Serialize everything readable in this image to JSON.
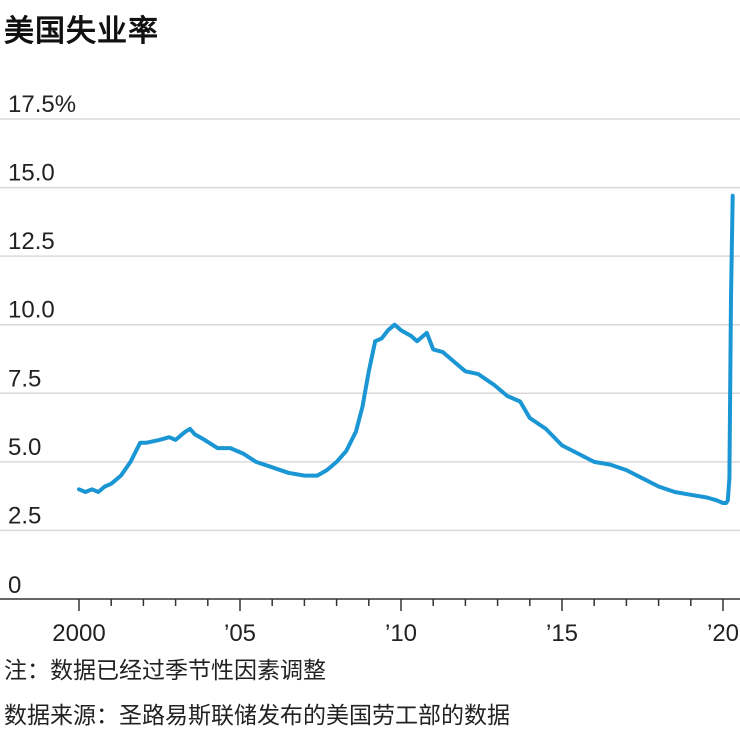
{
  "chart_data": {
    "type": "line",
    "title": "美国失业率",
    "xlabel": "",
    "ylabel": "",
    "ylim": [
      0,
      17.5
    ],
    "xlim": [
      2000.0,
      2020.4
    ],
    "y_ticks": [
      {
        "value": 17.5,
        "label": "17.5%"
      },
      {
        "value": 15.0,
        "label": "15.0"
      },
      {
        "value": 12.5,
        "label": "12.5"
      },
      {
        "value": 10.0,
        "label": "10.0"
      },
      {
        "value": 7.5,
        "label": "7.5"
      },
      {
        "value": 5.0,
        "label": "5.0"
      },
      {
        "value": 2.5,
        "label": "2.5"
      },
      {
        "value": 0,
        "label": "0"
      }
    ],
    "x_ticks": [
      {
        "value": 2000,
        "label": "2000"
      },
      {
        "value": 2005,
        "label": "’05"
      },
      {
        "value": 2010,
        "label": "’10"
      },
      {
        "value": 2015,
        "label": "’15"
      },
      {
        "value": 2020,
        "label": "’20"
      }
    ],
    "grid": true,
    "line_color": "#1a96d4",
    "series": [
      {
        "x": [
          2000.0,
          2000.2,
          2000.4,
          2000.6,
          2000.8,
          2001.0,
          2001.3,
          2001.6,
          2001.9,
          2002.1,
          2002.5,
          2002.8,
          2003.0,
          2003.3,
          2003.45,
          2003.6,
          2003.9,
          2004.3,
          2004.7,
          2005.1,
          2005.5,
          2006.0,
          2006.5,
          2007.0,
          2007.4,
          2007.7,
          2008.0,
          2008.3,
          2008.6,
          2008.8,
          2009.0,
          2009.2,
          2009.4,
          2009.6,
          2009.8,
          2010.0,
          2010.3,
          2010.5,
          2010.8,
          2011.0,
          2011.3,
          2011.7,
          2012.0,
          2012.4,
          2012.9,
          2013.3,
          2013.7,
          2014.0,
          2014.5,
          2015.0,
          2015.5,
          2016.0,
          2016.5,
          2017.0,
          2017.5,
          2018.0,
          2018.5,
          2019.0,
          2019.5,
          2019.8,
          2020.0,
          2020.1,
          2020.15,
          2020.2,
          2020.25,
          2020.3
        ],
        "y": [
          4.0,
          3.9,
          4.0,
          3.9,
          4.1,
          4.2,
          4.5,
          5.0,
          5.7,
          5.7,
          5.8,
          5.9,
          5.8,
          6.1,
          6.2,
          6.0,
          5.8,
          5.5,
          5.5,
          5.3,
          5.0,
          4.8,
          4.6,
          4.5,
          4.5,
          4.7,
          5.0,
          5.4,
          6.1,
          7.0,
          8.3,
          9.4,
          9.5,
          9.8,
          10.0,
          9.8,
          9.6,
          9.4,
          9.7,
          9.1,
          9.0,
          8.6,
          8.3,
          8.2,
          7.8,
          7.4,
          7.2,
          6.6,
          6.2,
          5.6,
          5.3,
          5.0,
          4.9,
          4.7,
          4.4,
          4.1,
          3.9,
          3.8,
          3.7,
          3.6,
          3.5,
          3.5,
          3.6,
          4.4,
          11.0,
          14.7
        ]
      }
    ]
  },
  "notes": {
    "note": "注：数据已经过季节性因素调整",
    "source": "数据来源：圣路易斯联储发布的美国劳工部的数据"
  }
}
